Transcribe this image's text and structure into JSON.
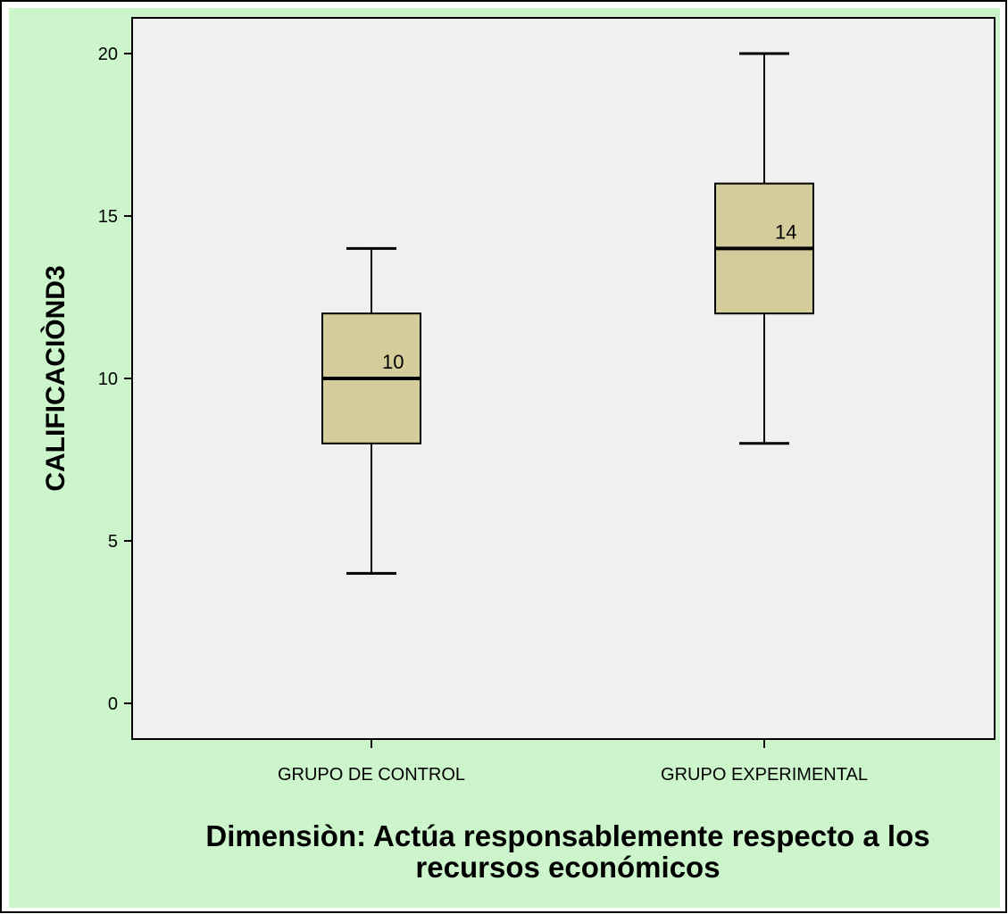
{
  "colors": {
    "outer_background": "#ccf5cc",
    "plot_background": "#f0f0f0",
    "box_fill": "#d4cc9a",
    "line": "#000000"
  },
  "chart_data": {
    "type": "boxplot",
    "title": "",
    "ylabel": "CALIFICACIÒND3",
    "xlabel_lines": [
      "Dimensiòn: Actúa responsablemente respecto a los",
      "recursos económicos"
    ],
    "ylim": [
      -1.1,
      21.1
    ],
    "yticks": [
      0,
      5,
      10,
      15,
      20
    ],
    "grid": false,
    "categories": [
      "GRUPO DE CONTROL",
      "GRUPO EXPERIMENTAL"
    ],
    "boxes": [
      {
        "category": "GRUPO DE CONTROL",
        "min": 4,
        "q1": 8,
        "median": 10,
        "q3": 12,
        "max": 14,
        "label": "10"
      },
      {
        "category": "GRUPO EXPERIMENTAL",
        "min": 8,
        "q1": 12,
        "median": 14,
        "q3": 16,
        "max": 20,
        "label": "14"
      }
    ]
  }
}
